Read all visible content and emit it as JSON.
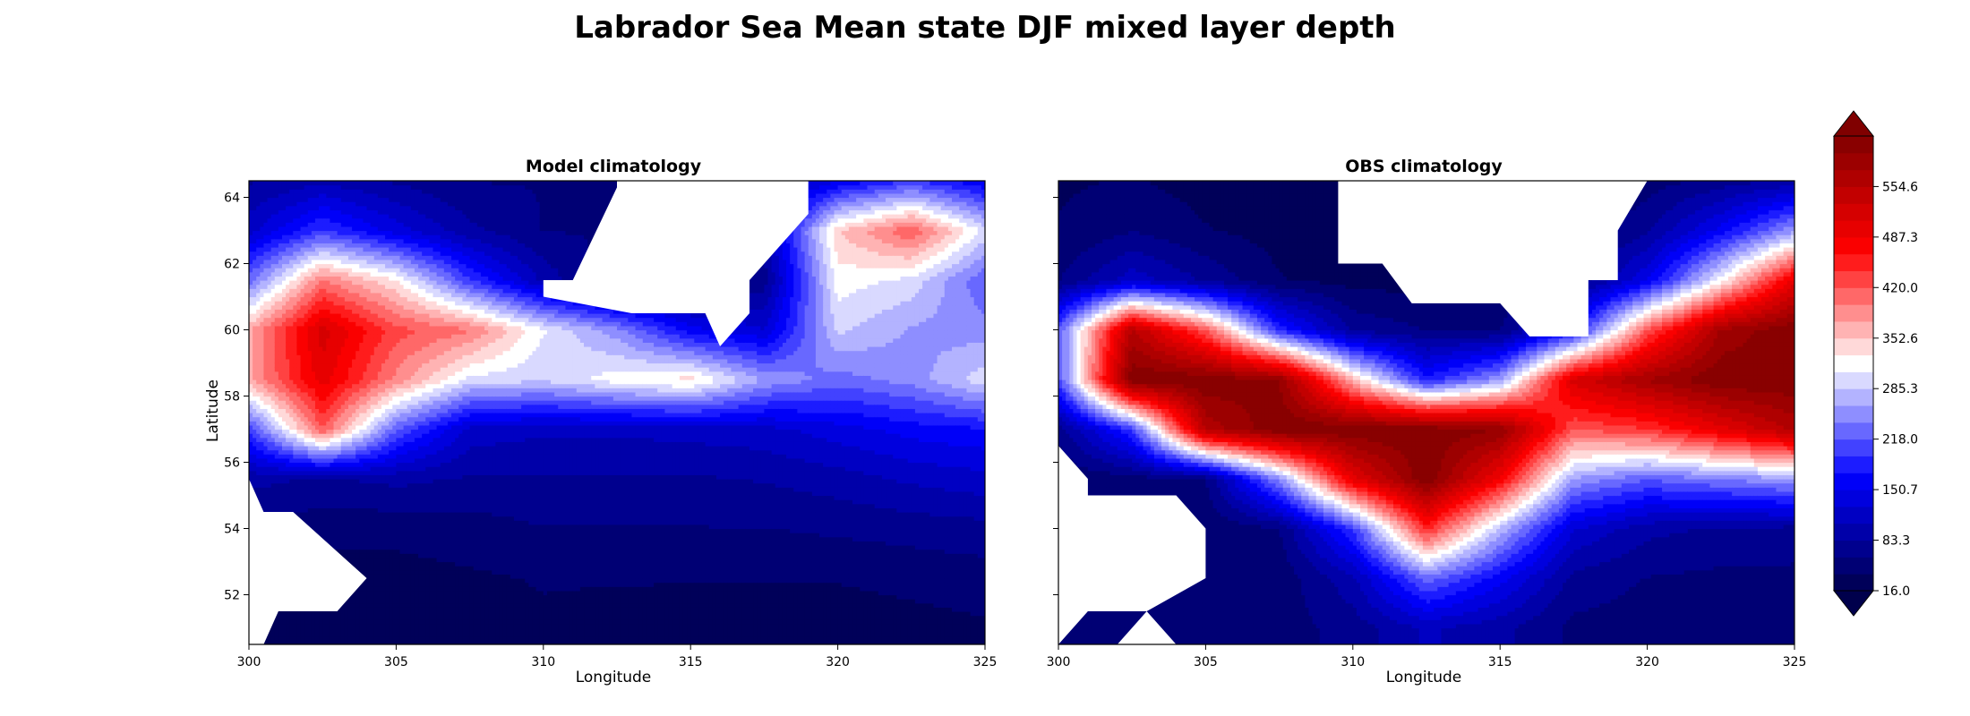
{
  "title": "Labrador Sea Mean state DJF mixed layer depth",
  "chart_data": [
    {
      "type": "heatmap",
      "title": "Model climatology",
      "xlabel": "Longitude",
      "ylabel": "Latitude",
      "xlim": [
        300,
        325
      ],
      "ylim": [
        50.5,
        64.5
      ],
      "xticks": [
        "300",
        "305",
        "310",
        "315",
        "320",
        "325"
      ],
      "yticks": [
        "52",
        "54",
        "56",
        "58",
        "60",
        "62",
        "64"
      ],
      "field": {
        "x": [
          300,
          302.5,
          305,
          307.5,
          310,
          312.5,
          315,
          317.5,
          320,
          322.5,
          325
        ],
        "y": [
          51,
          52.5,
          54,
          55.5,
          57,
          58.5,
          60,
          61.5,
          63,
          64.5
        ],
        "z": [
          [
            20,
            15,
            25,
            30,
            35,
            30,
            25,
            25,
            25,
            30,
            35
          ],
          [
            40,
            30,
            30,
            35,
            40,
            40,
            40,
            40,
            40,
            45,
            50
          ],
          [
            60,
            45,
            45,
            50,
            60,
            60,
            60,
            60,
            65,
            70,
            75
          ],
          [
            90,
            80,
            90,
            80,
            80,
            80,
            80,
            85,
            95,
            110,
            120
          ],
          [
            200,
            420,
            220,
            120,
            110,
            110,
            115,
            120,
            140,
            160,
            170
          ],
          [
            370,
            500,
            390,
            300,
            290,
            320,
            340,
            260,
            230,
            250,
            300
          ],
          [
            370,
            520,
            430,
            400,
            310,
            250,
            160,
            130,
            290,
            260,
            250
          ],
          [
            230,
            400,
            330,
            200,
            100,
            40,
            50,
            70,
            320,
            300,
            220
          ],
          [
            120,
            200,
            140,
            90,
            60,
            60,
            60,
            100,
            350,
            420,
            300
          ],
          [
            80,
            100,
            80,
            60,
            60,
            60,
            60,
            80,
            150,
            200,
            150
          ]
        ]
      },
      "masked": [
        [
          [
            300,
            55.5
          ],
          [
            300,
            50.5
          ],
          [
            300.5,
            50.5
          ],
          [
            301,
            51.5
          ],
          [
            303,
            51.5
          ],
          [
            304,
            52.5
          ],
          [
            301.5,
            54.5
          ],
          [
            300.5,
            54.5
          ]
        ],
        [
          [
            308,
            64.5
          ],
          [
            312.5,
            64.5
          ],
          [
            312.5,
            64.3
          ],
          [
            311,
            61.5
          ],
          [
            310,
            61.5
          ],
          [
            310,
            61
          ],
          [
            313,
            60.5
          ],
          [
            315.5,
            60.5
          ],
          [
            316,
            59.5
          ],
          [
            317,
            60.5
          ],
          [
            317,
            61.5
          ],
          [
            319,
            63.5
          ],
          [
            319,
            64.5
          ]
        ]
      ]
    },
    {
      "type": "heatmap",
      "title": "OBS climatology",
      "xlabel": "Longitude",
      "ylabel": "",
      "xlim": [
        300,
        325
      ],
      "ylim": [
        50.5,
        64.5
      ],
      "xticks": [
        "300",
        "305",
        "310",
        "315",
        "320",
        "325"
      ],
      "yticks": [],
      "field": {
        "x": [
          300,
          302.5,
          305,
          307.5,
          310,
          312.5,
          315,
          317.5,
          320,
          322.5,
          325
        ],
        "y": [
          51,
          52.5,
          54,
          55.5,
          57,
          58.5,
          60,
          61.5,
          63,
          64.5
        ],
        "z": [
          [
            40,
            45,
            45,
            50,
            70,
            110,
            90,
            55,
            50,
            45,
            45
          ],
          [
            35,
            40,
            40,
            45,
            100,
            230,
            160,
            75,
            60,
            55,
            55
          ],
          [
            30,
            35,
            40,
            60,
            200,
            450,
            280,
            130,
            90,
            80,
            75
          ],
          [
            40,
            50,
            60,
            250,
            500,
            620,
            480,
            260,
            220,
            240,
            260
          ],
          [
            70,
            200,
            560,
            620,
            620,
            620,
            600,
            420,
            440,
            500,
            560
          ],
          [
            210,
            620,
            620,
            600,
            360,
            180,
            260,
            520,
            580,
            620,
            620
          ],
          [
            220,
            560,
            420,
            190,
            80,
            60,
            60,
            170,
            420,
            580,
            620
          ],
          [
            60,
            120,
            80,
            40,
            30,
            30,
            40,
            60,
            150,
            320,
            500
          ],
          [
            40,
            60,
            40,
            30,
            30,
            30,
            30,
            40,
            80,
            160,
            260
          ],
          [
            35,
            40,
            30,
            25,
            25,
            25,
            25,
            30,
            50,
            70,
            90
          ]
        ]
      },
      "masked": [
        [
          [
            300,
            56.5
          ],
          [
            301,
            55.5
          ],
          [
            301,
            55
          ],
          [
            304,
            55
          ],
          [
            305,
            54
          ],
          [
            305,
            52.5
          ],
          [
            303,
            51.5
          ],
          [
            301,
            51.5
          ],
          [
            300,
            50.5
          ]
        ],
        [
          [
            302,
            50.5
          ],
          [
            303,
            51.5
          ],
          [
            304,
            50.5
          ]
        ],
        [
          [
            309.5,
            64.5
          ],
          [
            309.5,
            62
          ],
          [
            311,
            62
          ],
          [
            312,
            60.8
          ],
          [
            315,
            60.8
          ],
          [
            316,
            59.8
          ],
          [
            318,
            59.8
          ],
          [
            318,
            61.5
          ],
          [
            319,
            61.5
          ],
          [
            319,
            63
          ],
          [
            320,
            64.5
          ]
        ]
      ]
    }
  ],
  "colorbar": {
    "vmin": 16.0,
    "vmax": 621.9,
    "ticks": [
      "16.0",
      "83.3",
      "150.7",
      "218.0",
      "285.3",
      "352.6",
      "420.0",
      "487.3",
      "554.6"
    ],
    "extend": "both",
    "colormap": "seismic",
    "levels": 27
  },
  "colors": {
    "darkblue": "#00004c",
    "blue": "#0000ff",
    "white": "#ffffff",
    "red": "#ff0000",
    "darkred": "#800000"
  }
}
